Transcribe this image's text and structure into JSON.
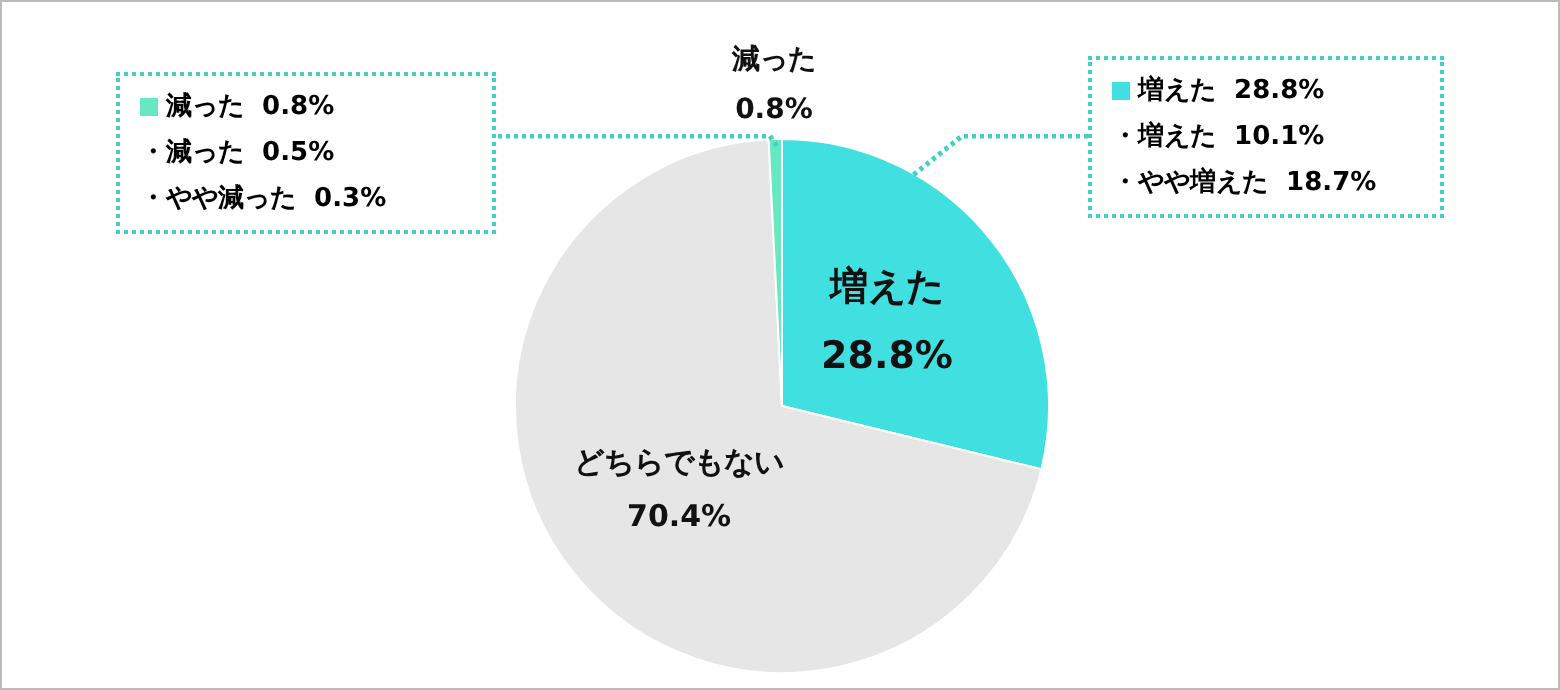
{
  "chart_data": {
    "type": "pie",
    "categories": [
      "増えた",
      "どちらでもない",
      "減った"
    ],
    "values": [
      28.8,
      70.4,
      0.8
    ],
    "colors": [
      "#40e0e0",
      "#e6e6e6",
      "#66e8c0"
    ],
    "value_labels": [
      "28.8%",
      "70.4%",
      "0.8%"
    ],
    "annotations": [
      "減った  0.8%",
      "・減った  0.5%",
      "・やや減った  0.3%",
      "増えた  28.8%",
      "・増えた  10.1%",
      "・やや増えた  18.7%"
    ]
  }
}
